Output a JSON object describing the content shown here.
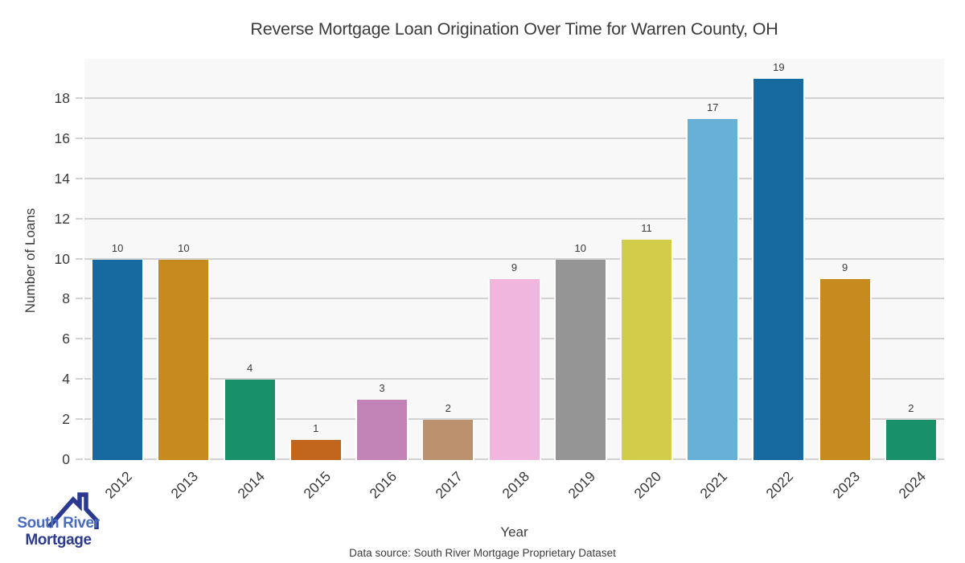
{
  "chart_data": {
    "type": "bar",
    "title": "Reverse Mortgage Loan Origination Over Time for Warren County, OH",
    "xlabel": "Year",
    "ylabel": "Number of Loans",
    "categories": [
      "2012",
      "2013",
      "2014",
      "2015",
      "2016",
      "2017",
      "2018",
      "2019",
      "2020",
      "2021",
      "2022",
      "2023",
      "2024"
    ],
    "values": [
      10,
      10,
      4,
      1,
      3,
      2,
      9,
      10,
      11,
      17,
      19,
      9,
      2
    ],
    "bar_colors": [
      "#176AA0",
      "#C68A1F",
      "#18906A",
      "#C2651D",
      "#C284B6",
      "#BC926E",
      "#F0B6DE",
      "#959595",
      "#D2CC4B",
      "#68B0D6",
      "#176AA0",
      "#C68A1F",
      "#18906A"
    ],
    "ylim": [
      0,
      20
    ],
    "yticks": [
      0,
      2,
      4,
      6,
      8,
      10,
      12,
      14,
      16,
      18
    ],
    "grid": "horizontal",
    "legend": "none",
    "plot_background": "#f8f8f8",
    "grid_color": "#d2d2d2",
    "value_labels_shown": true
  },
  "footer": {
    "source_text": "Data source: South River Mortgage Proprietary Dataset"
  },
  "logo": {
    "line1": "South River",
    "line2": "Mortgage",
    "line1_color": "#4A6CBE",
    "line2_color": "#2D3B8E",
    "roof_color": "#2B3990"
  }
}
